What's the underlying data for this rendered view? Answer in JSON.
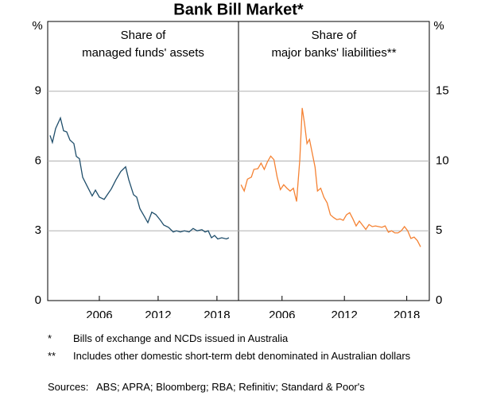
{
  "title": "Bank Bill Market*",
  "chart_data": [
    {
      "type": "line",
      "title": [
        "Share of",
        "managed funds' assets"
      ],
      "y_label": "%",
      "y_axis_side": "left",
      "color": "#1f4e6b",
      "x": [
        2000.97,
        2001.21,
        2001.54,
        2002.03,
        2002.35,
        2002.67,
        2003.0,
        2003.4,
        2003.65,
        2003.97,
        2004.3,
        2004.78,
        2005.27,
        2005.6,
        2006.0,
        2006.49,
        2006.89,
        2007.22,
        2007.7,
        2008.19,
        2008.68,
        2009.0,
        2009.49,
        2009.81,
        2010.14,
        2010.62,
        2010.95,
        2011.35,
        2011.76,
        2012.24,
        2012.57,
        2013.06,
        2013.54,
        2013.87,
        2014.27,
        2014.68,
        2015.16,
        2015.57,
        2015.98,
        2016.46,
        2016.79,
        2017.11,
        2017.44,
        2017.76,
        2018.08,
        2018.49,
        2018.97,
        2019.22
      ],
      "values": [
        7.1,
        6.8,
        7.4,
        7.85,
        7.3,
        7.25,
        6.9,
        6.75,
        6.2,
        6.1,
        5.3,
        4.9,
        4.5,
        4.75,
        4.45,
        4.35,
        4.6,
        4.8,
        5.2,
        5.55,
        5.75,
        5.2,
        4.55,
        4.45,
        3.95,
        3.6,
        3.35,
        3.8,
        3.7,
        3.45,
        3.25,
        3.15,
        2.95,
        3.0,
        2.95,
        3.0,
        2.95,
        3.1,
        3.0,
        3.05,
        2.95,
        3.0,
        2.7,
        2.8,
        2.65,
        2.7,
        2.65,
        2.7
      ],
      "xlim": [
        2000.73,
        2020.2
      ],
      "xticks": [
        2006,
        2012,
        2018
      ],
      "ylim": [
        0,
        12
      ],
      "yticks": [
        0,
        3,
        6,
        9
      ],
      "grid": true
    },
    {
      "type": "line",
      "title": [
        "Share of",
        "major banks' liabilities**"
      ],
      "y_label": "%",
      "y_axis_side": "right",
      "color": "#f58233",
      "x": [
        2002.05,
        2002.36,
        2002.67,
        2003.05,
        2003.29,
        2003.67,
        2003.98,
        2004.29,
        2004.6,
        2004.91,
        2005.22,
        2005.53,
        2005.84,
        2006.16,
        2006.47,
        2006.78,
        2007.09,
        2007.4,
        2007.71,
        2007.94,
        2008.17,
        2008.4,
        2008.64,
        2008.87,
        2009.18,
        2009.41,
        2009.72,
        2010.03,
        2010.34,
        2010.65,
        2010.96,
        2011.27,
        2011.58,
        2011.89,
        2012.2,
        2012.51,
        2012.82,
        2013.13,
        2013.44,
        2013.75,
        2014.06,
        2014.37,
        2014.68,
        2014.99,
        2015.3,
        2015.61,
        2015.92,
        2016.23,
        2016.54,
        2016.85,
        2017.16,
        2017.47,
        2017.78,
        2018.09,
        2018.4,
        2018.71,
        2019.02,
        2019.33
      ],
      "values": [
        8.3,
        7.85,
        8.7,
        8.85,
        9.4,
        9.45,
        9.85,
        9.4,
        9.95,
        10.35,
        10.1,
        8.85,
        7.95,
        8.3,
        8.05,
        7.85,
        8.05,
        7.1,
        10.1,
        13.8,
        12.65,
        11.25,
        11.55,
        10.7,
        9.55,
        7.85,
        8.05,
        7.4,
        7.0,
        6.15,
        5.95,
        5.8,
        5.85,
        5.75,
        6.15,
        6.3,
        5.85,
        5.35,
        5.7,
        5.4,
        5.1,
        5.45,
        5.3,
        5.35,
        5.3,
        5.25,
        5.35,
        4.9,
        5.0,
        4.85,
        4.85,
        5.0,
        5.3,
        5.0,
        4.45,
        4.55,
        4.3,
        3.85
      ],
      "xlim": [
        2001.81,
        2020.17
      ],
      "xticks": [
        2006,
        2012,
        2018
      ],
      "ylim": [
        0,
        20
      ],
      "yticks": [
        0,
        5,
        10,
        15
      ],
      "grid": true
    }
  ],
  "notes": [
    {
      "symbol": "*",
      "text": "Bills of exchange and NCDs issued in Australia"
    },
    {
      "symbol": "**",
      "text": "Includes other domestic short-term debt denominated in Australian dollars"
    }
  ],
  "sources": {
    "label": "Sources:",
    "text": "ABS; APRA; Bloomberg; RBA; Refinitiv; Standard & Poor's"
  }
}
